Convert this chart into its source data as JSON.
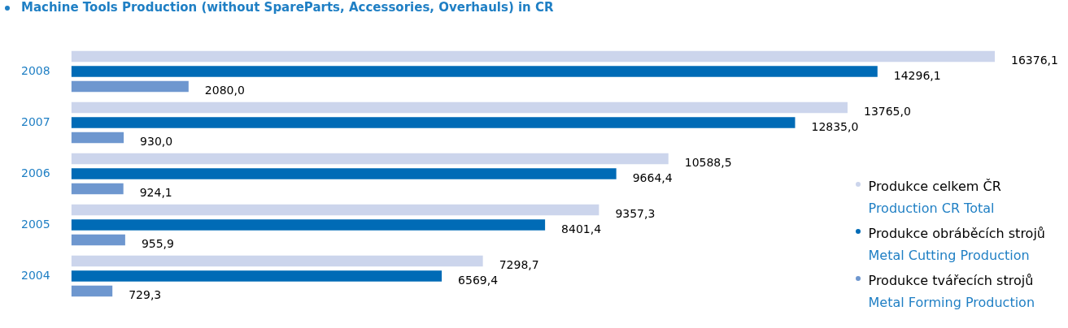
{
  "chart_data": {
    "type": "bar",
    "orientation": "horizontal",
    "title": "Machine Tools Production (without SpareParts, Accessories, Overhauls) in CR",
    "categories": [
      "2008",
      "2007",
      "2006",
      "2005",
      "2004"
    ],
    "series": [
      {
        "name": "Produkce celkem ČR\nProduction CR Total",
        "color": "#ccd5ec",
        "values": [
          16376.1,
          13765.0,
          10588.5,
          9357.3,
          7298.7
        ],
        "value_labels": [
          "16376,1",
          "13765,0",
          "10588,5",
          "9357,3",
          "7298,7"
        ]
      },
      {
        "name": "Produkce obráběcích strojů\nMetal Cutting Production",
        "color": "#006bb6",
        "values": [
          14296.1,
          12835.0,
          9664.4,
          8401.4,
          6569.4
        ],
        "value_labels": [
          "14296,1",
          "12835,0",
          "9664,4",
          "8401,4",
          "6569,4"
        ]
      },
      {
        "name": "Produkce tvářecích strojů\nMetal Forming Production",
        "color": "#6e97cf",
        "values": [
          2080.0,
          930.0,
          924.1,
          955.9,
          729.3
        ],
        "value_labels": [
          "2080,0",
          "930,0",
          "924,1",
          "955,9",
          "729,3"
        ]
      }
    ],
    "xlim": [
      0,
      16376.1
    ],
    "legend": "bottom right"
  }
}
